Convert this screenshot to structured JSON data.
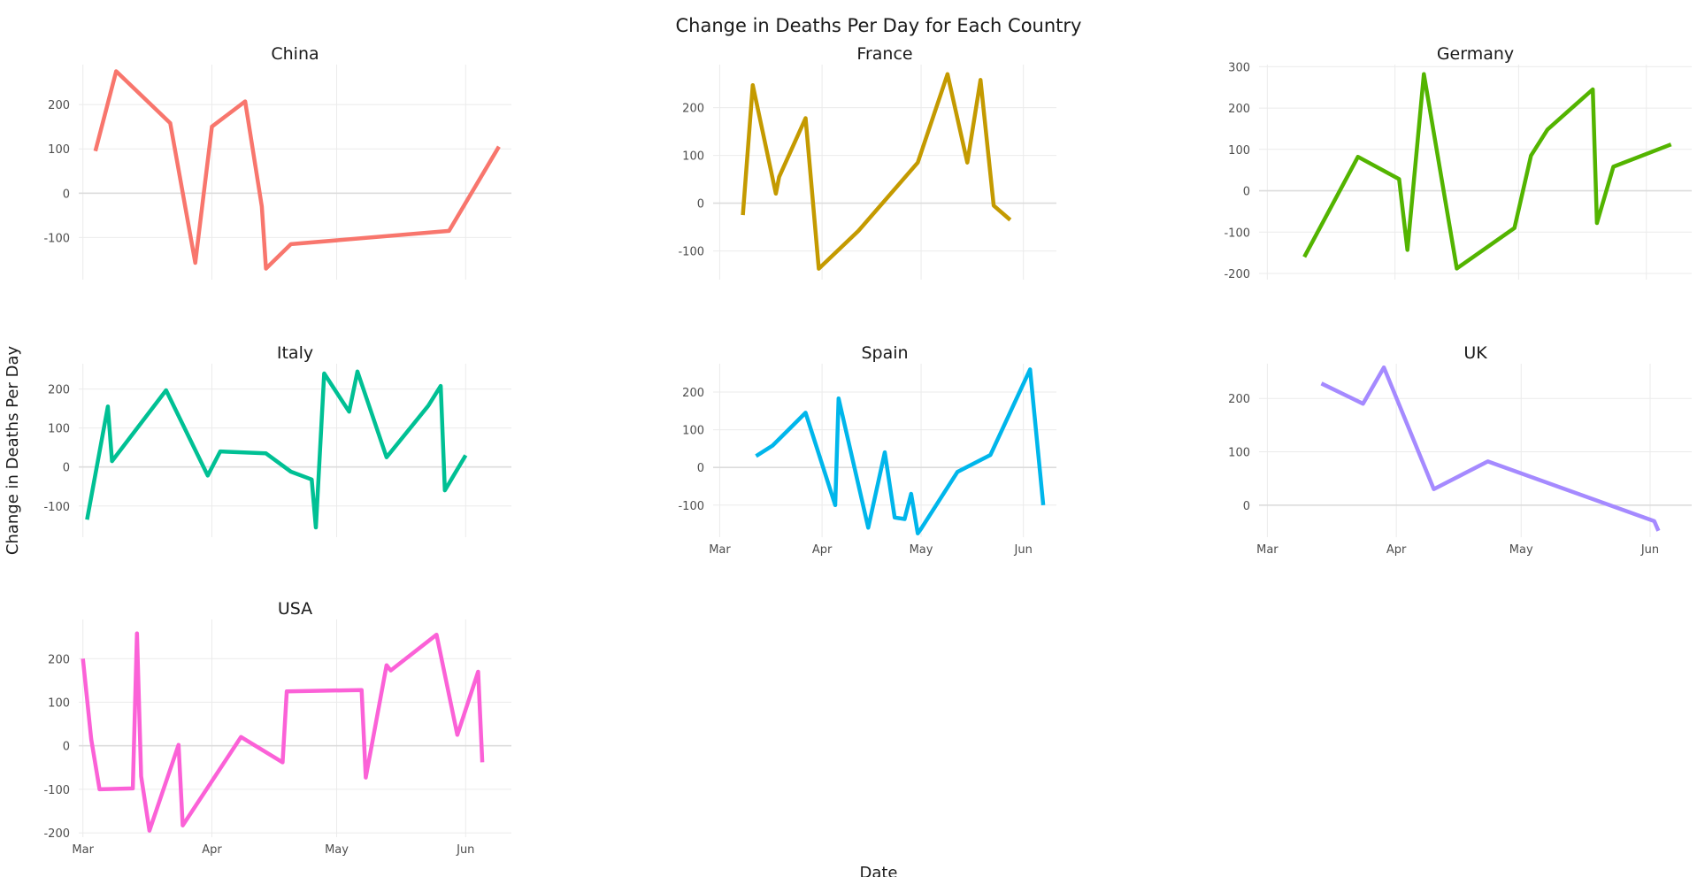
{
  "title": "Change in Deaths Per Day for Each Country",
  "chart_data": {
    "type": "line",
    "title": "Change in Deaths Per Day for Each Country",
    "xlabel": "Date",
    "ylabel": "Change in Deaths Per Day",
    "grid": true,
    "legend": "none",
    "x_ticks": [
      {
        "date": "2020-03-01",
        "label": "Mar"
      },
      {
        "date": "2020-04-01",
        "label": "Apr"
      },
      {
        "date": "2020-05-01",
        "label": "May"
      },
      {
        "date": "2020-06-01",
        "label": "Jun"
      }
    ],
    "panels": [
      {
        "name": "China",
        "color": "#F8766D",
        "xlim": [
          "2020-02-29",
          "2020-06-12"
        ],
        "ylim": [
          -195,
          290
        ],
        "yticks": [
          -100,
          0,
          100,
          200
        ],
        "show_x_labels": false,
        "x": [
          "2020-03-04",
          "2020-03-09",
          "2020-03-22",
          "2020-03-28",
          "2020-04-01",
          "2020-04-09",
          "2020-04-13",
          "2020-04-14",
          "2020-04-20",
          "2020-05-28",
          "2020-06-09"
        ],
        "y": [
          95,
          275,
          158,
          -157,
          150,
          207,
          -30,
          -170,
          -115,
          -85,
          105
        ]
      },
      {
        "name": "France",
        "color": "#C49A00",
        "xlim": [
          "2020-02-28",
          "2020-06-11"
        ],
        "ylim": [
          -160,
          290
        ],
        "yticks": [
          -100,
          0,
          100,
          200
        ],
        "show_x_labels": false,
        "x": [
          "2020-03-08",
          "2020-03-11",
          "2020-03-18",
          "2020-03-19",
          "2020-03-27",
          "2020-03-31",
          "2020-04-12",
          "2020-04-30",
          "2020-05-09",
          "2020-05-15",
          "2020-05-19",
          "2020-05-23",
          "2020-05-28"
        ],
        "y": [
          -25,
          247,
          20,
          55,
          178,
          -137,
          -58,
          85,
          270,
          85,
          258,
          -5,
          -35
        ]
      },
      {
        "name": "Germany",
        "color": "#53B400",
        "xlim": [
          "2020-02-28",
          "2020-06-12"
        ],
        "ylim": [
          -215,
          305
        ],
        "yticks": [
          -200,
          -100,
          0,
          100,
          200,
          300
        ],
        "show_x_labels": false,
        "x": [
          "2020-03-10",
          "2020-03-23",
          "2020-04-02",
          "2020-04-04",
          "2020-04-08",
          "2020-04-16",
          "2020-04-30",
          "2020-05-04",
          "2020-05-08",
          "2020-05-19",
          "2020-05-20",
          "2020-05-24",
          "2020-06-07"
        ],
        "y": [
          -160,
          82,
          28,
          -143,
          282,
          -188,
          -90,
          85,
          148,
          245,
          -78,
          58,
          112
        ]
      },
      {
        "name": "Italy",
        "color": "#00C094",
        "xlim": [
          "2020-02-29",
          "2020-06-12"
        ],
        "ylim": [
          -180,
          265
        ],
        "yticks": [
          -100,
          0,
          100,
          200
        ],
        "show_x_labels": false,
        "x": [
          "2020-03-02",
          "2020-03-07",
          "2020-03-08",
          "2020-03-21",
          "2020-03-31",
          "2020-04-03",
          "2020-04-14",
          "2020-04-20",
          "2020-04-25",
          "2020-04-26",
          "2020-04-28",
          "2020-05-04",
          "2020-05-06",
          "2020-05-13",
          "2020-05-23",
          "2020-05-26",
          "2020-05-27",
          "2020-06-01"
        ],
        "y": [
          -135,
          155,
          15,
          197,
          -22,
          40,
          35,
          -12,
          -32,
          -155,
          240,
          142,
          245,
          25,
          157,
          208,
          -60,
          30
        ]
      },
      {
        "name": "Spain",
        "color": "#00B6EB",
        "xlim": [
          "2020-02-28",
          "2020-06-11"
        ],
        "ylim": [
          -185,
          275
        ],
        "yticks": [
          -100,
          0,
          100,
          200
        ],
        "show_x_labels": true,
        "x": [
          "2020-03-12",
          "2020-03-17",
          "2020-03-27",
          "2020-04-05",
          "2020-04-06",
          "2020-04-15",
          "2020-04-20",
          "2020-04-23",
          "2020-04-26",
          "2020-04-28",
          "2020-04-30",
          "2020-05-01",
          "2020-05-12",
          "2020-05-22",
          "2020-06-03",
          "2020-06-07"
        ],
        "y": [
          30,
          58,
          145,
          -100,
          183,
          -160,
          40,
          -133,
          -137,
          -70,
          -175,
          -163,
          -12,
          33,
          260,
          -100
        ]
      },
      {
        "name": "UK",
        "color": "#A58AFF",
        "xlim": [
          "2020-02-28",
          "2020-06-11"
        ],
        "ylim": [
          -60,
          265
        ],
        "yticks": [
          0,
          100,
          200
        ],
        "show_x_labels": true,
        "x": [
          "2020-03-14",
          "2020-03-24",
          "2020-03-29",
          "2020-04-10",
          "2020-04-23",
          "2020-06-02",
          "2020-06-03"
        ],
        "y": [
          228,
          190,
          258,
          30,
          82,
          -30,
          -48
        ]
      },
      {
        "name": "USA",
        "color": "#FB61D7",
        "xlim": [
          "2020-02-29",
          "2020-06-12"
        ],
        "ylim": [
          -210,
          290
        ],
        "yticks": [
          -200,
          -100,
          0,
          100,
          200
        ],
        "show_x_labels": true,
        "x": [
          "2020-03-01",
          "2020-03-03",
          "2020-03-05",
          "2020-03-13",
          "2020-03-14",
          "2020-03-15",
          "2020-03-17",
          "2020-03-24",
          "2020-03-25",
          "2020-04-08",
          "2020-04-18",
          "2020-04-19",
          "2020-05-07",
          "2020-05-08",
          "2020-05-10",
          "2020-05-13",
          "2020-05-14",
          "2020-05-25",
          "2020-05-30",
          "2020-06-04",
          "2020-06-05"
        ],
        "y": [
          200,
          15,
          -100,
          -98,
          258,
          -70,
          -195,
          2,
          -183,
          20,
          -38,
          125,
          128,
          -73,
          30,
          185,
          173,
          255,
          25,
          170,
          -38
        ]
      }
    ]
  }
}
